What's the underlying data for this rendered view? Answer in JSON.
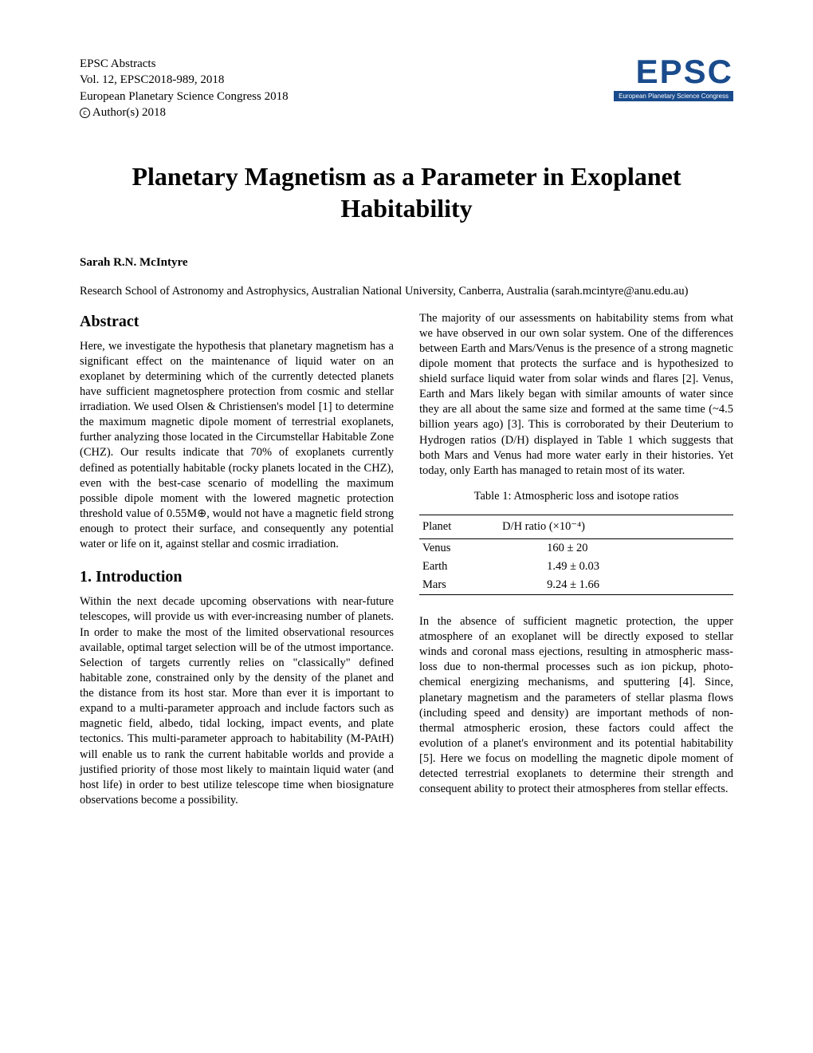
{
  "header": {
    "line1": "EPSC Abstracts",
    "line2": "Vol. 12, EPSC2018-989, 2018",
    "line3": "European Planetary Science Congress 2018",
    "copyright_symbol": "c",
    "line4_rest": " Author(s) 2018"
  },
  "logo": {
    "main": "EPSC",
    "sub": "European Planetary Science Congress"
  },
  "title": "Planetary Magnetism as a Parameter in Exoplanet Habitability",
  "author": "Sarah R.N. McIntyre",
  "affiliation": "Research School of Astronomy and Astrophysics, Australian National University, Canberra, Australia (sarah.mcintyre@anu.edu.au)",
  "abstract_heading": "Abstract",
  "abstract_text": "Here, we investigate the hypothesis that planetary magnetism has a significant effect on the maintenance of liquid water on an exoplanet by determining which of the currently detected planets have sufficient magnetosphere protection from cosmic and stellar irradiation. We used Olsen & Christiensen's model [1] to determine the maximum magnetic dipole moment of terrestrial exoplanets, further analyzing those located in the Circumstellar Habitable Zone (CHZ). Our results indicate that 70% of exoplanets currently defined as potentially habitable (rocky planets located in the CHZ), even with the best-case scenario of modelling the maximum possible dipole moment with the lowered magnetic protection threshold value of 0.55M⊕, would not have a magnetic field strong enough to protect their surface, and consequently any potential water or life on it, against stellar and cosmic irradiation.",
  "intro_heading": "1. Introduction",
  "intro_p1": "Within the next decade upcoming observations with near-future telescopes, will provide us with ever-increasing number of planets. In order to make the most of the limited observational resources available, optimal target selection will be of the utmost importance. Selection of targets currently relies on \"classically\" defined habitable zone, constrained only by the density of the planet and the distance from its host star.  More than ever it is important to expand to a multi-parameter approach and include factors such as magnetic field, albedo, tidal locking, impact events, and plate tectonics. This multi-parameter approach to habitability (M-PAtH) will enable us to rank the current habitable worlds and provide a justified priority of those most likely to maintain liquid water (and host life) in order to best utilize telescope time when biosignature observations become a possibility.",
  "col2_p1": "The majority of our assessments on habitability stems from what we have observed in our own solar system. One of the differences between Earth and Mars/Venus is the presence of a strong magnetic dipole moment that protects the surface and is hypothesized to shield surface liquid water from solar winds and flares [2]. Venus, Earth and Mars likely began with similar amounts of water since they are all about the same size and formed at the same time (~4.5 billion years ago) [3]. This is corroborated by their Deuterium to Hydrogen ratios (D/H) displayed in Table 1 which suggests that both Mars and Venus had more water early in their histories. Yet today, only Earth has managed to retain most of its water.",
  "table": {
    "caption": "Table 1: Atmospheric loss and isotope ratios",
    "columns": [
      "Planet",
      "D/H ratio (×10⁻⁴)"
    ],
    "rows": [
      [
        "Venus",
        "160 ± 20"
      ],
      [
        "Earth",
        "1.49 ± 0.03"
      ],
      [
        "Mars",
        "9.24 ± 1.66"
      ]
    ]
  },
  "col2_p2": "In the absence of sufficient magnetic protection, the upper atmosphere of an exoplanet will be directly exposed to stellar winds and coronal mass ejections, resulting in atmospheric mass-loss due to non-thermal processes such as ion pickup, photo-chemical energizing mechanisms, and sputtering [4]. Since, planetary magnetism and the parameters of stellar plasma flows (including speed and density) are important methods of non-thermal atmospheric erosion, these factors could affect the evolution of a planet's environment and its potential habitability [5]. Here we focus on modelling the magnetic dipole moment of detected terrestrial exoplanets to determine their strength and consequent ability to protect their atmospheres from stellar effects."
}
